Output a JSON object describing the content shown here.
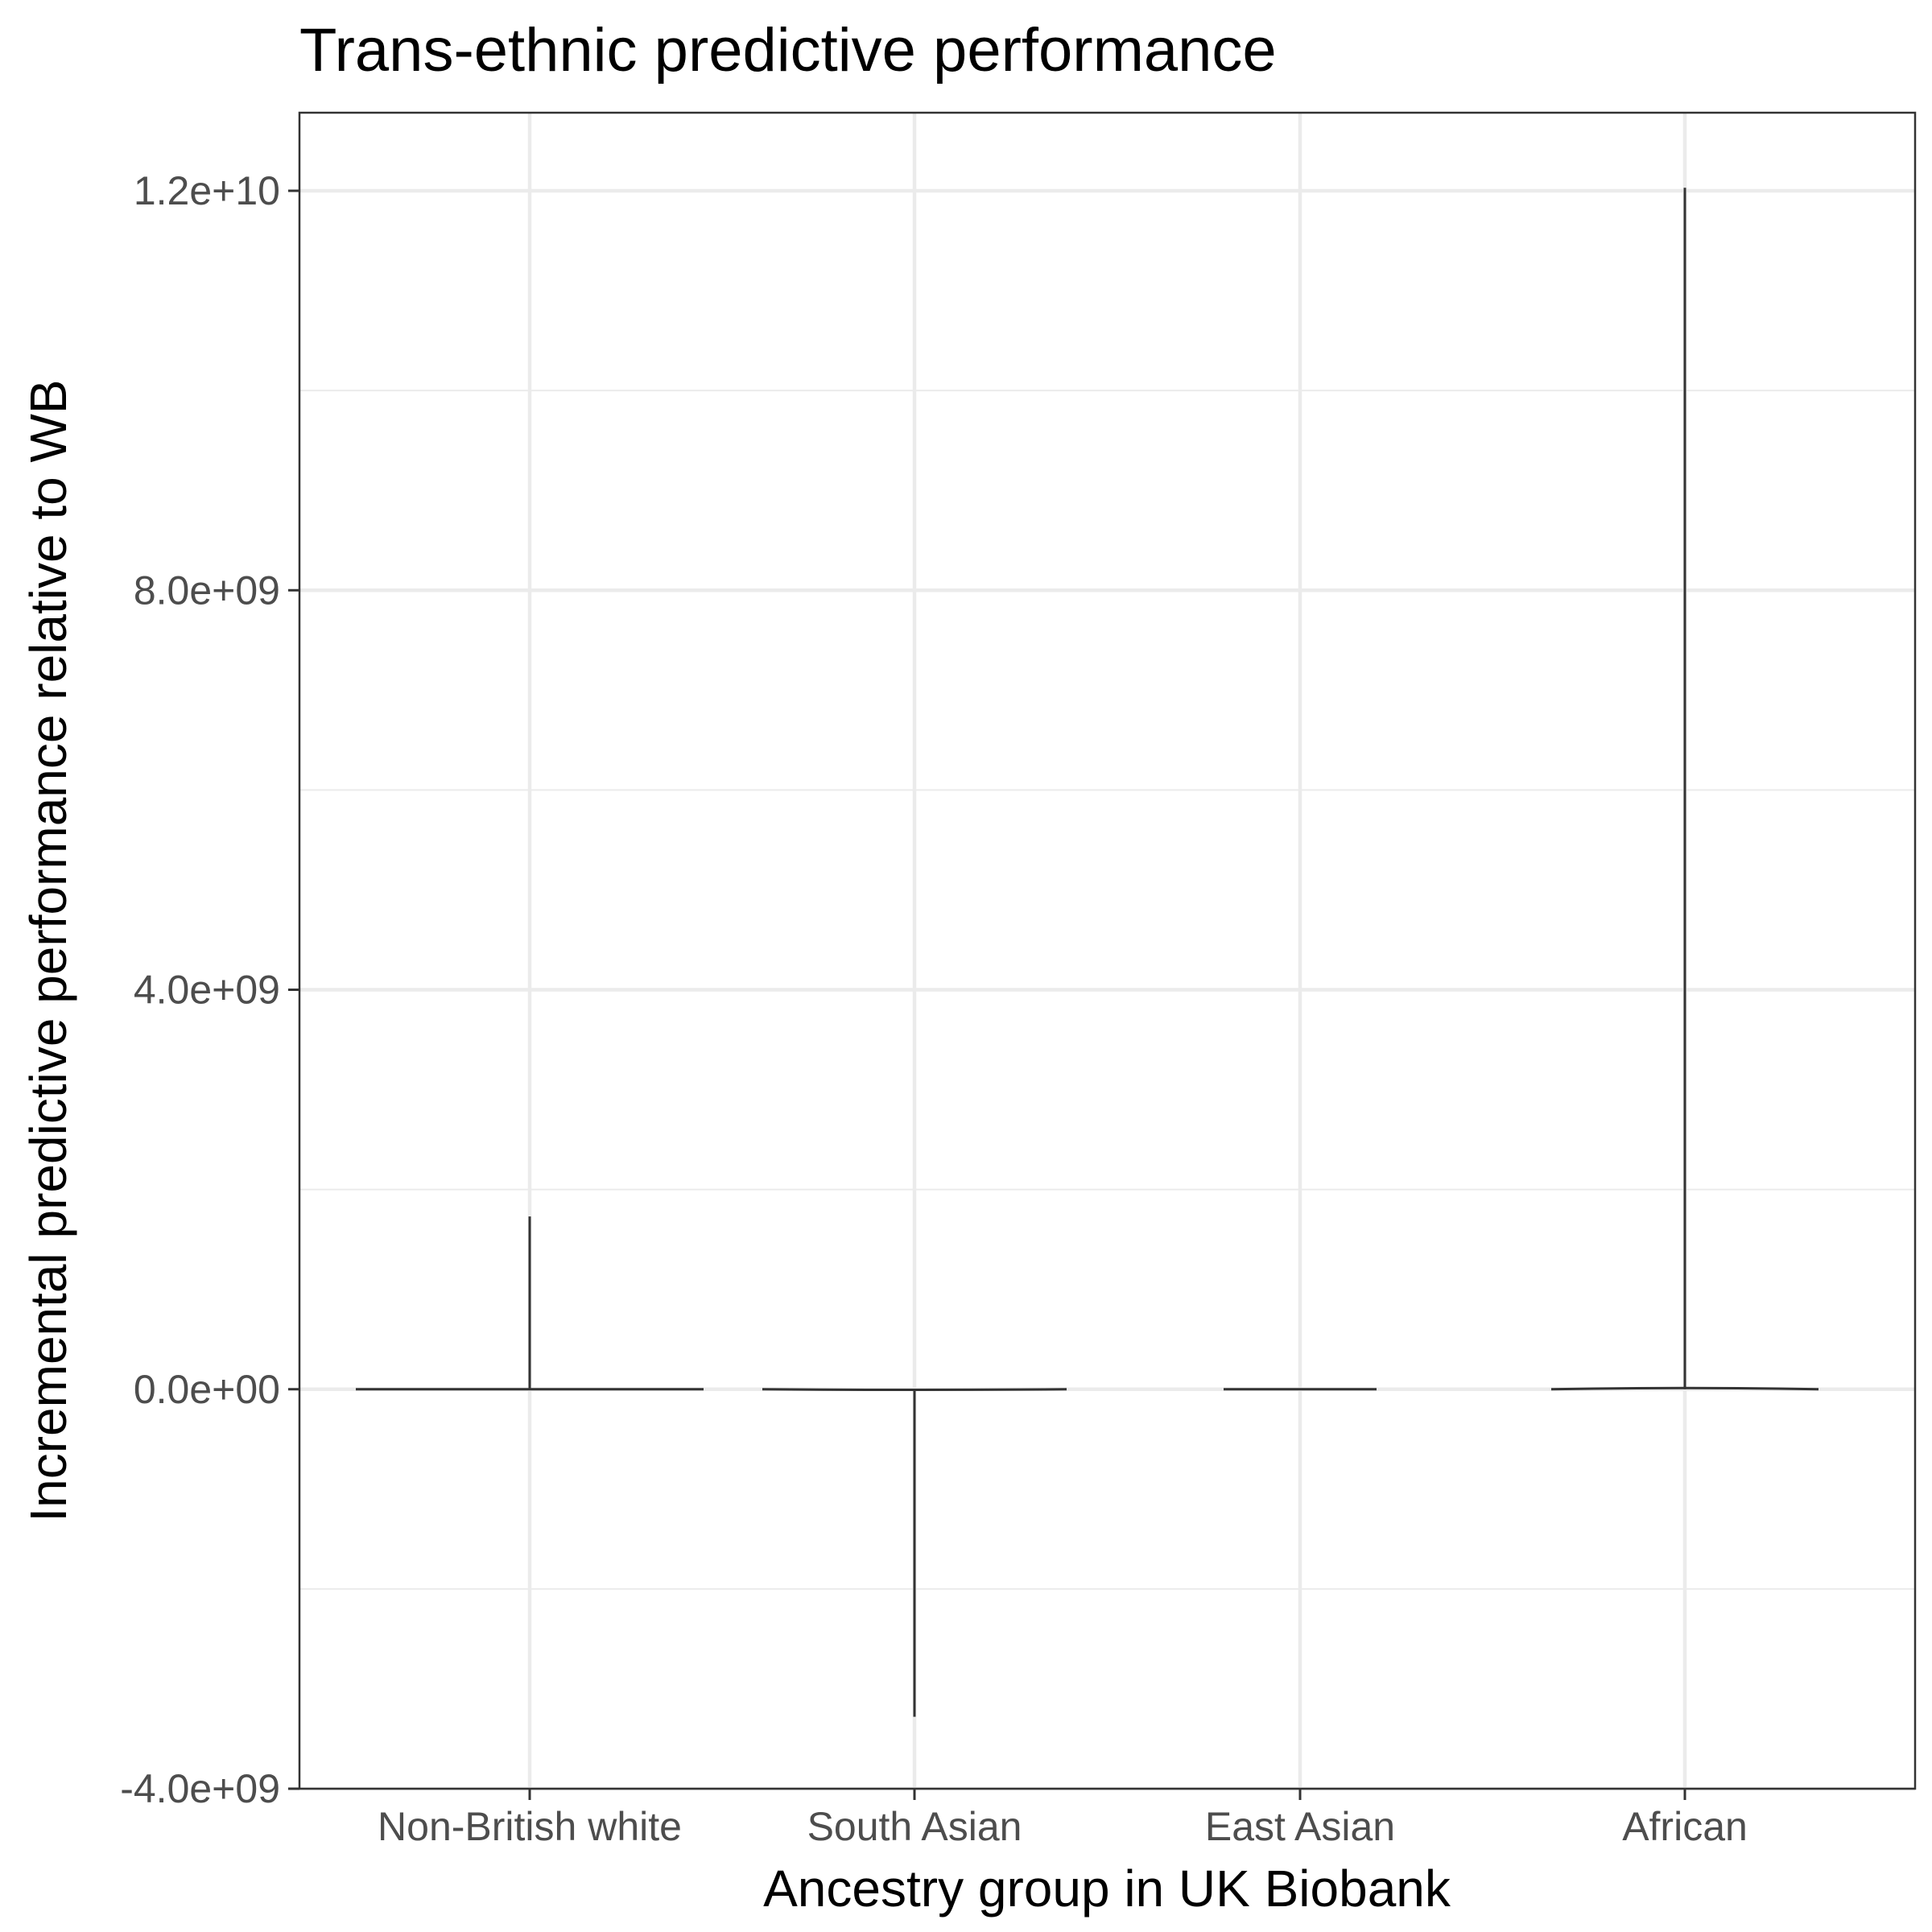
{
  "chart_data": {
    "type": "violin",
    "title": "Trans-ethnic predictive performance",
    "xlabel": "Ancestry group in UK Biobank",
    "ylabel": "Incremental predictive performance relative to WB",
    "categories": [
      "Non-British white",
      "South Asian",
      "East Asian",
      "African"
    ],
    "ylim": [
      -4000000000,
      12000000000
    ],
    "yticks": [
      -4000000000,
      0,
      4000000000,
      8000000000,
      12000000000
    ],
    "ytick_labels": [
      "-4.0e+09",
      "0.0e+00",
      "4.0e+09",
      "8.0e+09",
      "1.2e+10"
    ],
    "grid": true,
    "series": [
      {
        "category": "Non-British white",
        "min": 0,
        "max": 1730000000,
        "median": 0
      },
      {
        "category": "South Asian",
        "min": -3280000000,
        "max": 0,
        "median": 0
      },
      {
        "category": "East Asian",
        "min": 0,
        "max": 0,
        "median": 0
      },
      {
        "category": "African",
        "min": 0,
        "max": 12030000000,
        "median": 0
      }
    ],
    "colors": {
      "outline": "#333333",
      "fill": "#ffffff",
      "grid": "#ebebeb",
      "panel_border": "#333333"
    }
  }
}
